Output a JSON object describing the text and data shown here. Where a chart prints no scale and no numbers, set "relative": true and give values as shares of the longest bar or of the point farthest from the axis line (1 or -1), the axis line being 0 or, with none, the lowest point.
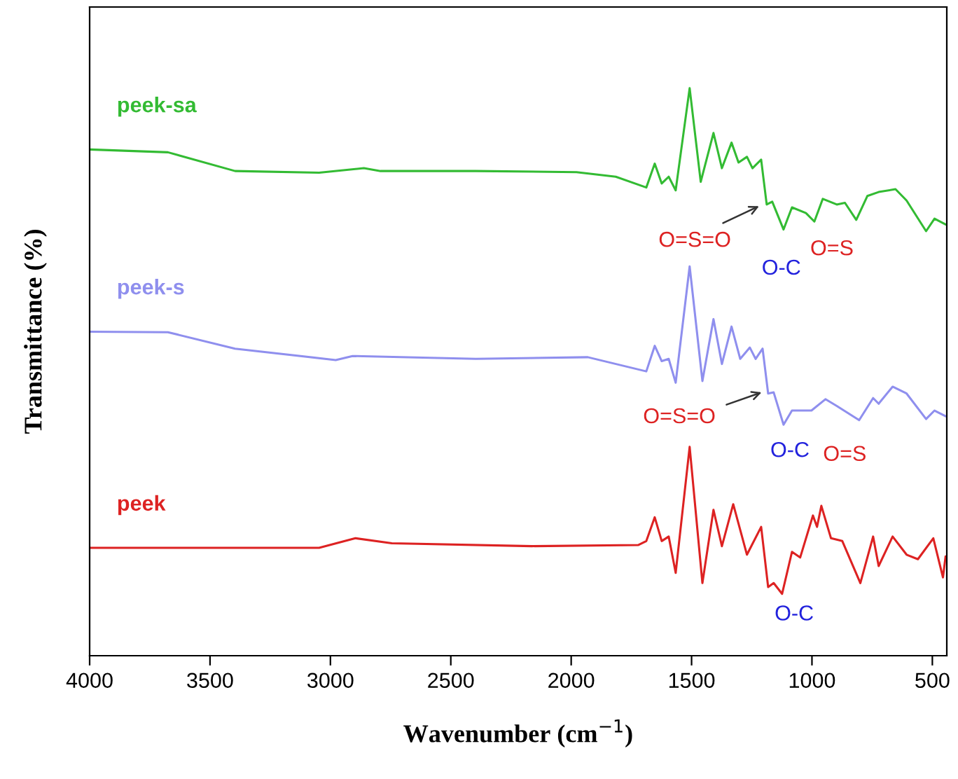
{
  "chart_data": {
    "type": "line",
    "relative": true,
    "xlabel": "Wavenumber (cm$^{−1}$)",
    "ylabel": "Transmittance (%)",
    "xlim": [
      4000,
      440
    ],
    "xticks": [
      4000,
      3500,
      3000,
      2500,
      2000,
      1500,
      1000,
      500
    ],
    "series": [
      {
        "name": "peek-sa",
        "color": "#33bb33",
        "x": [
          4000,
          3675,
          3396,
          3047,
          2861,
          2792,
          2396,
          1978,
          1815,
          1688,
          1653,
          1624,
          1595,
          1566,
          1508,
          1462,
          1409,
          1374,
          1334,
          1305,
          1270,
          1247,
          1211,
          1188,
          1165,
          1118,
          1083,
          1025,
          990,
          955,
          897,
          863,
          816,
          770,
          723,
          653,
          607,
          526,
          491,
          445
        ],
        "values": [
          0.892,
          0.887,
          0.854,
          0.851,
          0.859,
          0.854,
          0.854,
          0.852,
          0.844,
          0.825,
          0.867,
          0.832,
          0.844,
          0.82,
          1.0,
          0.835,
          0.921,
          0.859,
          0.904,
          0.869,
          0.879,
          0.859,
          0.874,
          0.795,
          0.8,
          0.751,
          0.79,
          0.78,
          0.765,
          0.805,
          0.795,
          0.798,
          0.768,
          0.81,
          0.817,
          0.822,
          0.802,
          0.748,
          0.77,
          0.76
        ]
      },
      {
        "name": "peek-s",
        "color": "#8f8fee",
        "x": [
          4000,
          3675,
          3396,
          2978,
          2908,
          2396,
          1931,
          1688,
          1653,
          1624,
          1595,
          1566,
          1508,
          1455,
          1409,
          1374,
          1334,
          1298,
          1258,
          1234,
          1205,
          1182,
          1159,
          1118,
          1083,
          1002,
          944,
          897,
          804,
          746,
          723,
          665,
          607,
          526,
          491,
          445
        ],
        "values": [
          0.571,
          0.57,
          0.541,
          0.521,
          0.528,
          0.523,
          0.526,
          0.501,
          0.546,
          0.519,
          0.523,
          0.481,
          0.686,
          0.484,
          0.593,
          0.514,
          0.58,
          0.523,
          0.543,
          0.523,
          0.541,
          0.462,
          0.464,
          0.407,
          0.432,
          0.432,
          0.452,
          0.44,
          0.415,
          0.454,
          0.444,
          0.474,
          0.462,
          0.417,
          0.432,
          0.422
        ]
      },
      {
        "name": "peek",
        "color": "#dd2222",
        "x": [
          4000,
          3094,
          3047,
          2896,
          2745,
          2164,
          1722,
          1688,
          1653,
          1624,
          1595,
          1566,
          1508,
          1455,
          1409,
          1374,
          1327,
          1270,
          1211,
          1182,
          1159,
          1124,
          1083,
          1049,
          996,
          979,
          961,
          921,
          874,
          799,
          746,
          723,
          665,
          607,
          560,
          496,
          456,
          445
        ],
        "values": [
          0.19,
          0.19,
          0.19,
          0.207,
          0.198,
          0.193,
          0.195,
          0.202,
          0.244,
          0.202,
          0.21,
          0.146,
          0.368,
          0.128,
          0.257,
          0.193,
          0.267,
          0.178,
          0.227,
          0.121,
          0.128,
          0.109,
          0.183,
          0.173,
          0.247,
          0.227,
          0.264,
          0.207,
          0.202,
          0.128,
          0.21,
          0.158,
          0.21,
          0.178,
          0.17,
          0.207,
          0.138,
          0.175
        ]
      }
    ],
    "annotations": [
      "O=S=O",
      "O-C",
      "O=S",
      "O=S=O",
      "O-C",
      "O=S",
      "O-C"
    ],
    "grid": false,
    "line_style": "solid",
    "marker": "none"
  }
}
